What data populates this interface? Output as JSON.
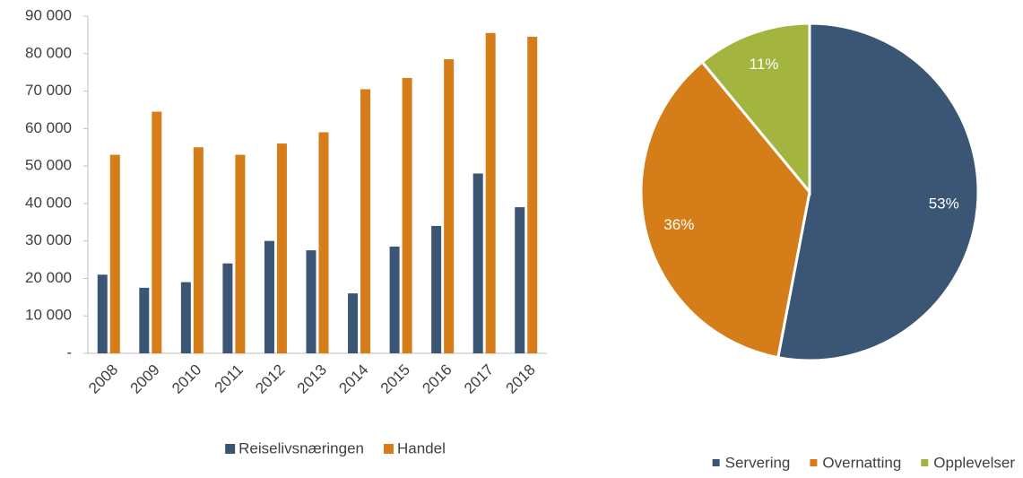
{
  "chart_data": [
    {
      "type": "bar",
      "categories": [
        "2008",
        "2009",
        "2010",
        "2011",
        "2012",
        "2013",
        "2014",
        "2015",
        "2016",
        "2017",
        "2018"
      ],
      "series": [
        {
          "name": "Reiselivsnæringen",
          "color": "#3b5674",
          "values": [
            21000,
            17500,
            19000,
            24000,
            30000,
            27500,
            16000,
            28500,
            34000,
            48000,
            39000
          ]
        },
        {
          "name": "Handel",
          "color": "#d57e19",
          "values": [
            53000,
            64500,
            55000,
            53000,
            56000,
            59000,
            70500,
            73500,
            78500,
            85500,
            84500
          ]
        }
      ],
      "ylim": [
        0,
        90000
      ],
      "yticks": [
        {
          "value": 0,
          "label": "-"
        },
        {
          "value": 10000,
          "label": "10 000"
        },
        {
          "value": 20000,
          "label": "20 000"
        },
        {
          "value": 30000,
          "label": "30 000"
        },
        {
          "value": 40000,
          "label": "40 000"
        },
        {
          "value": 50000,
          "label": "50 000"
        },
        {
          "value": 60000,
          "label": "60 000"
        },
        {
          "value": 70000,
          "label": "70 000"
        },
        {
          "value": 80000,
          "label": "80 000"
        },
        {
          "value": 90000,
          "label": "90 000"
        }
      ],
      "grid": false,
      "legend": "bottom"
    },
    {
      "type": "pie",
      "categories": [
        "Servering",
        "Overnatting",
        "Opplevelser"
      ],
      "values": [
        53,
        36,
        11
      ],
      "value_labels": [
        "53%",
        "36%",
        "11%"
      ],
      "colors": [
        "#3b5674",
        "#d57e19",
        "#a3b43f"
      ],
      "legend": "bottom"
    }
  ]
}
